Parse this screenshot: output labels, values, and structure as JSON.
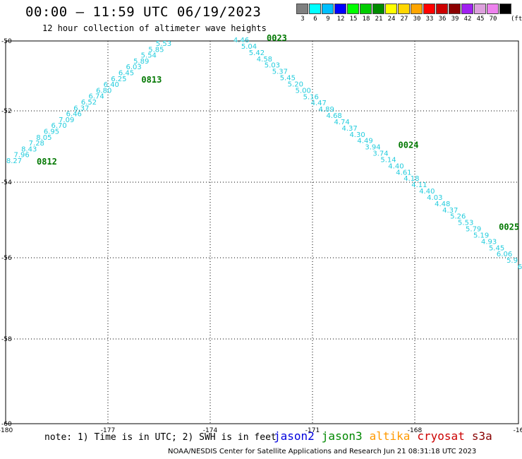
{
  "header": {
    "title": "00:00 – 11:59 UTC 06/19/2023",
    "subtitle": "12 hour collection of altimeter wave heights"
  },
  "legend": {
    "colors": [
      "#7f7f7f",
      "#00ffff",
      "#00bfff",
      "#0000ff",
      "#00ff00",
      "#00cd00",
      "#008b00",
      "#ffff00",
      "#ffd700",
      "#ffa500",
      "#ff0000",
      "#cd0000",
      "#8b0000",
      "#a020f0",
      "#dda0dd",
      "#ee82ee",
      "#000000"
    ],
    "labels": [
      "3",
      "6",
      "9",
      "12",
      "15",
      "18",
      "21",
      "24",
      "27",
      "30",
      "33",
      "36",
      "39",
      "42",
      "45",
      "70"
    ],
    "unit": "(ft)"
  },
  "map": {
    "lat_labels": [
      "-50",
      "-52",
      "-54",
      "-56",
      "-58",
      "-60"
    ],
    "lon_labels": [
      "-180",
      "-177",
      "-174",
      "-171",
      "-168",
      "-16"
    ],
    "track_color": "#22ccdd",
    "time_color": "#007700",
    "tracks": [
      {
        "swh": [
          "8.27",
          "7.96",
          "8.43",
          "7.28",
          "8.05",
          "6.95",
          "6.70",
          "7.09",
          "6.46",
          "6.37",
          "6.52",
          "6.74",
          "6.80",
          "6.40",
          "6.25",
          "6.45",
          "6.03",
          "5.89",
          "5.54",
          "5.85",
          "5.53"
        ],
        "times": [
          {
            "label": "0812",
            "at": 0
          },
          {
            "label": "0813",
            "at": 14
          }
        ]
      },
      {
        "swh": [
          "4.46",
          "5.04",
          "5.42",
          "4.58",
          "5.03",
          "5.37",
          "5.45",
          "5.20",
          "5.00",
          "5.16",
          "4.47",
          "4.89",
          "4.68",
          "4.74",
          "4.37",
          "4.30",
          "4.49",
          "3.94",
          "3.74",
          "5.14",
          "4.40",
          "4.61",
          "4.18",
          "4.11",
          "4.40",
          "4.03",
          "4.48",
          "4.37",
          "5.26",
          "5.53",
          "5.79",
          "5.19",
          "4.93",
          "5.45",
          "6.06",
          "5.9",
          "6"
        ],
        "times": [
          {
            "label": "0023",
            "at": 0
          },
          {
            "label": "0024",
            "at": 17
          },
          {
            "label": "0025",
            "at": 30
          }
        ]
      }
    ]
  },
  "footer": {
    "note": "note:  1) Time is in UTC; 2) SWH is in feet",
    "satellites": [
      {
        "name": "jason2",
        "color": "#0000dd"
      },
      {
        "name": "jason3",
        "color": "#008800"
      },
      {
        "name": "altika",
        "color": "#ff9900"
      },
      {
        "name": "cryosat",
        "color": "#cc0000"
      },
      {
        "name": "s3a",
        "color": "#880000"
      }
    ],
    "credit": "NOAA/NESDIS Center for Satellite Applications and Research    Jun 21 08:31:18 UTC 2023"
  }
}
